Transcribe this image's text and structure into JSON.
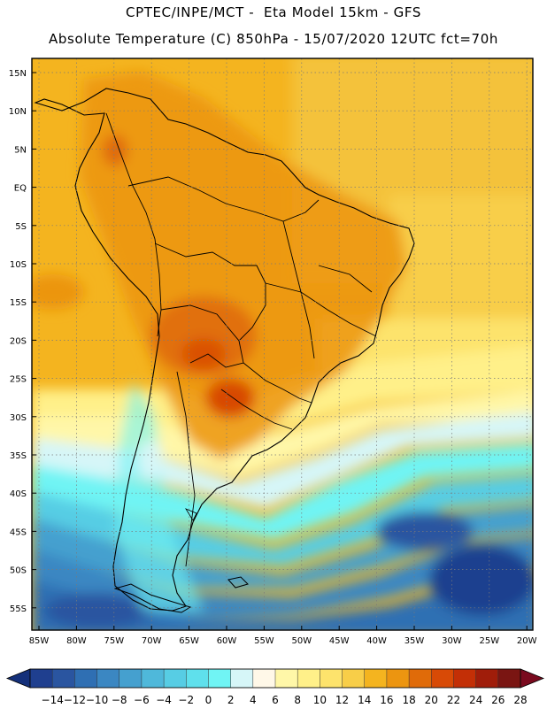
{
  "header": {
    "line1": "CPTEC/INPE/MCT -  Eta Model 15km - GFS",
    "line2": "Absolute Temperature (C) 850hPa - 15/07/2020 12UTC fct=70h"
  },
  "axes": {
    "lat_labels": [
      "15N",
      "10N",
      "5N",
      "EQ",
      "5S",
      "10S",
      "15S",
      "20S",
      "25S",
      "30S",
      "35S",
      "40S",
      "45S",
      "50S",
      "55S"
    ],
    "lon_labels": [
      "85W",
      "80W",
      "75W",
      "70W",
      "65W",
      "60W",
      "55W",
      "50W",
      "45W",
      "40W",
      "35W",
      "30W",
      "25W",
      "20W"
    ]
  },
  "colorbar": {
    "labels": [
      "-14",
      "-12",
      "-10",
      "-8",
      "-6",
      "-4",
      "-2",
      "0",
      "2",
      "4",
      "6",
      "8",
      "10",
      "12",
      "14",
      "16",
      "18",
      "20",
      "22",
      "24",
      "26",
      "28"
    ],
    "colors": [
      "#1f3f8f",
      "#2a55a0",
      "#2f6fb3",
      "#3b87c2",
      "#45a0cf",
      "#4fb8da",
      "#57cde4",
      "#5fe0ec",
      "#70f4f4",
      "#d6f6f8",
      "#fff8e8",
      "#fff7a8",
      "#fff089",
      "#fde36c",
      "#f8ce48",
      "#f4b41f",
      "#ec9510",
      "#e06b09",
      "#d84a06",
      "#c32f06",
      "#a01d0a",
      "#7a1512"
    ],
    "low_end_color": "#14307a",
    "high_end_color": "#7a0a1e"
  }
}
